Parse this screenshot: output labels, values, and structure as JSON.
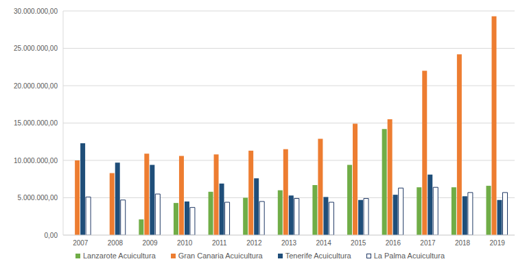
{
  "chart_data": {
    "type": "bar",
    "categories": [
      "2007",
      "2008",
      "2009",
      "2010",
      "2011",
      "2012",
      "2013",
      "2014",
      "2015",
      "2016",
      "2017",
      "2018",
      "2019"
    ],
    "series": [
      {
        "name": "Lanzarote Acuicultura",
        "color": "#70ad47",
        "values": [
          null,
          null,
          2100000,
          4300000,
          5800000,
          5000000,
          6000000,
          6700000,
          9400000,
          14200000,
          6400000,
          6400000,
          6600000
        ]
      },
      {
        "name": "Gran Canaria Acuicultura",
        "color": "#ed7d31",
        "values": [
          10000000,
          8300000,
          10900000,
          10600000,
          10800000,
          11300000,
          11500000,
          12900000,
          14900000,
          15500000,
          22000000,
          24200000,
          29300000
        ]
      },
      {
        "name": "Tenerife Acuicultura",
        "color": "#1f4e79",
        "values": [
          12300000,
          9700000,
          9400000,
          4500000,
          6900000,
          7600000,
          5300000,
          5100000,
          4700000,
          5400000,
          8100000,
          5200000,
          4700000
        ]
      },
      {
        "name": "La Palma Acuicultura",
        "color": "#ffffff",
        "values": [
          5100000,
          4700000,
          5500000,
          3700000,
          4400000,
          4500000,
          4900000,
          4400000,
          4900000,
          6300000,
          6400000,
          5700000,
          5700000
        ]
      }
    ],
    "ylim": [
      0,
      30000000
    ],
    "yticks": [
      {
        "value": 0,
        "label": "0,00"
      },
      {
        "value": 5000000,
        "label": "5.000.000,00"
      },
      {
        "value": 10000000,
        "label": "10.000.000,00"
      },
      {
        "value": 15000000,
        "label": "15.000.000,00"
      },
      {
        "value": 20000000,
        "label": "20.000.000,00"
      },
      {
        "value": 25000000,
        "label": "25.000.000,00"
      },
      {
        "value": 30000000,
        "label": "30.000.000,00"
      }
    ],
    "grid": true,
    "legend": "bottom"
  }
}
